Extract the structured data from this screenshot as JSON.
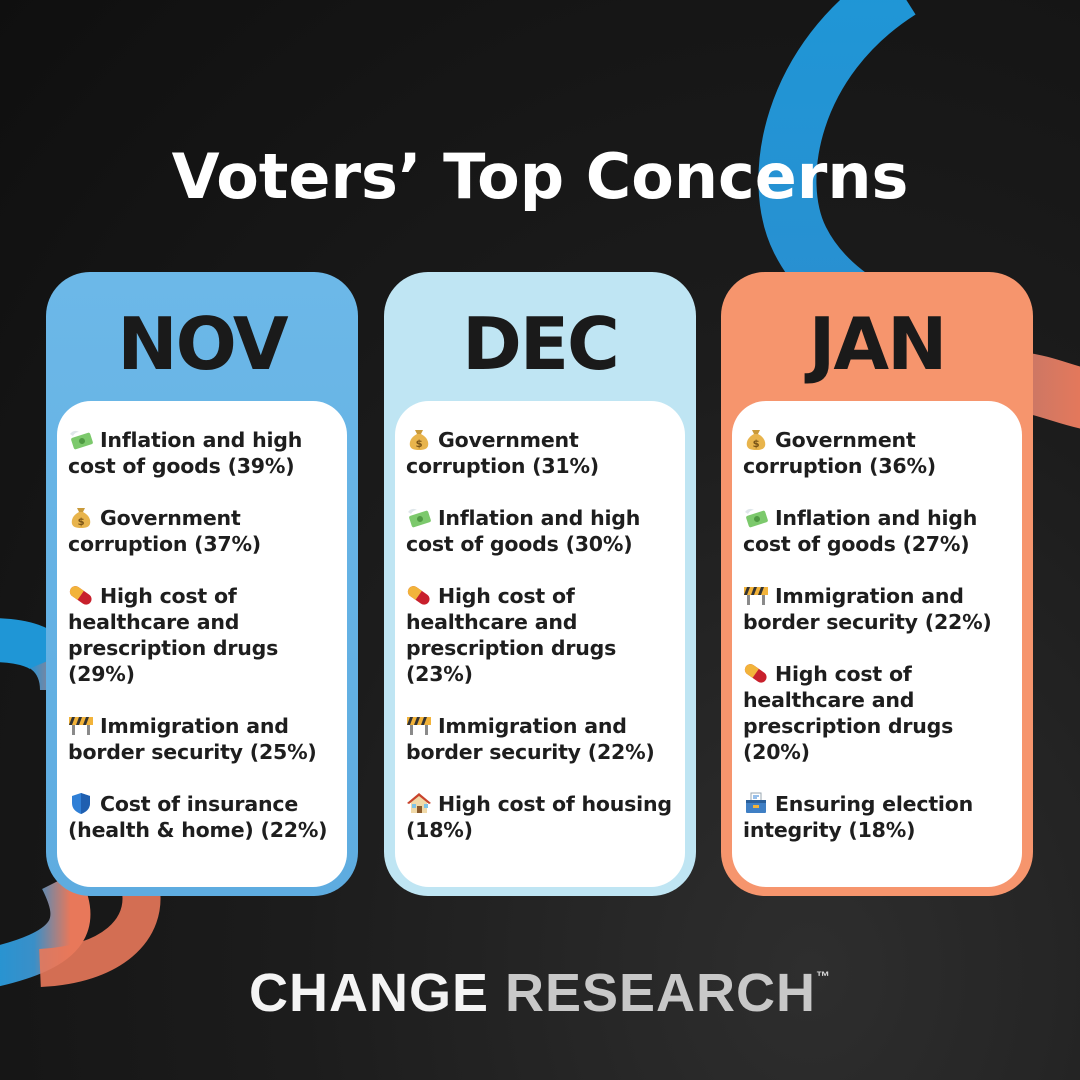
{
  "title": "Voters’ Top Concerns",
  "colors": {
    "background": "#141414",
    "nov": "#6ab6e6",
    "dec": "#bde4f2",
    "jan": "#f6946c",
    "arc_blue": "#1f96d6",
    "arc_orange": "#e8785a"
  },
  "columns": [
    {
      "month": "NOV",
      "items": [
        {
          "icon": "money-with-wings-icon",
          "text": "Inflation and high cost of goods (39%)"
        },
        {
          "icon": "money-bag-icon",
          "text": "Government corruption (37%)"
        },
        {
          "icon": "pill-icon",
          "text": "High cost of healthcare and prescription drugs (29%)"
        },
        {
          "icon": "construction-barrier-icon",
          "text": "Immigration and border security (25%)"
        },
        {
          "icon": "shield-icon",
          "text": "Cost of insurance (health & home) (22%)"
        }
      ]
    },
    {
      "month": "DEC",
      "items": [
        {
          "icon": "money-bag-icon",
          "text": "Government corruption (31%)"
        },
        {
          "icon": "money-with-wings-icon",
          "text": "Inflation and high cost of goods (30%)"
        },
        {
          "icon": "pill-icon",
          "text": "High cost of healthcare and prescription drugs (23%)"
        },
        {
          "icon": "construction-barrier-icon",
          "text": "Immigration and border security (22%)"
        },
        {
          "icon": "house-icon",
          "text": "High cost of housing (18%)"
        }
      ]
    },
    {
      "month": "JAN",
      "items": [
        {
          "icon": "money-bag-icon",
          "text": "Government corruption (36%)"
        },
        {
          "icon": "money-with-wings-icon",
          "text": "Inflation and high cost of goods (27%)"
        },
        {
          "icon": "construction-barrier-icon",
          "text": "Immigration and border security (22%)"
        },
        {
          "icon": "pill-icon",
          "text": "High cost of healthcare and prescription drugs (20%)"
        },
        {
          "icon": "ballot-box-icon",
          "text": "Ensuring election integrity (18%)"
        }
      ]
    }
  ],
  "logo": {
    "word1": "CHANGE",
    "word2": "RESEARCH",
    "mark": "™"
  }
}
